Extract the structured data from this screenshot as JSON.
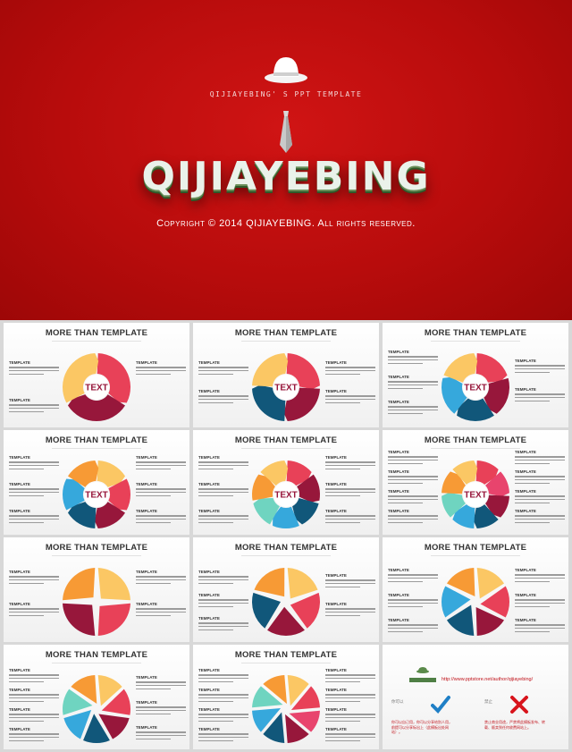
{
  "hero": {
    "subtitle": "QIJIAYEBING' S PPT TEMPLATE",
    "brand": "QIJIAYEBING",
    "copyright": "Copyright © 2014 QIJIAYEBING. All rights reserved.",
    "background": "#b80c0c",
    "hat_icon": "bowler-hat-icon",
    "tie_icon": "necktie-icon"
  },
  "slide_title": "MORE THAN TEMPLATE",
  "label": "TEMPLATE",
  "center_text": "TEXT",
  "colors": {
    "red": "#e84158",
    "yellow": "#fbc764",
    "maroon": "#97173b",
    "navy": "#11577a",
    "blue": "#36a8dc",
    "orange": "#f79a35",
    "teal": "#6fd4c0",
    "pink": "#e8446d"
  },
  "last_slide": {
    "url": "http://www.pptstore.net/author/qijiayebing/",
    "allowed_label": "你可以",
    "allowed_text": "你可以自己用，你可以分享给别人用，前提可以分享标出上（此模板出处网站）。",
    "prohibited_label": "禁止",
    "prohibited_text": "禁止商业用途，严禁将此模板发布、转载、贩卖到任何收费网站上。",
    "logo_icon": "qijiayebing-logo-icon",
    "check_icon": "check-icon",
    "cross_icon": "cross-icon"
  }
}
